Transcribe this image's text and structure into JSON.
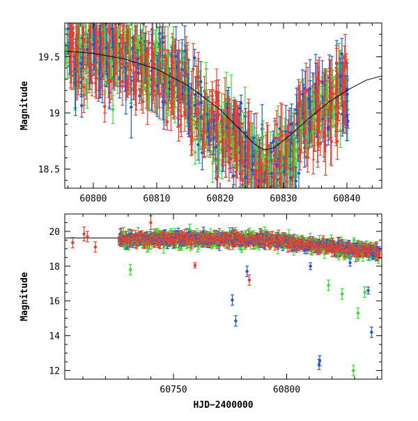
{
  "chart_data": [
    {
      "type": "scatter",
      "title": "",
      "xlabel": "",
      "ylabel": "Magnitude",
      "xlim": [
        60795.5,
        60845.5
      ],
      "ylim": [
        19.8,
        18.33
      ],
      "y_inverted": true,
      "grid": false,
      "legend": "none",
      "x_ticks": [
        60800,
        60810,
        60820,
        60830,
        60840
      ],
      "x_tick_labels": [
        "60800",
        "60810",
        "60820",
        "60830",
        "60840"
      ],
      "y_ticks": [
        18.5,
        19,
        19.5
      ],
      "y_tick_labels": [
        "18.5",
        "19",
        "19.5"
      ],
      "model_curve": {
        "name": "",
        "color": "#000000",
        "points": [
          [
            60795.5,
            19.55
          ],
          [
            60800,
            19.53
          ],
          [
            60805,
            19.48
          ],
          [
            60810,
            19.39
          ],
          [
            60815,
            19.24
          ],
          [
            60820,
            19.03
          ],
          [
            60823,
            18.86
          ],
          [
            60825.5,
            18.72
          ],
          [
            60827,
            18.67
          ],
          [
            60828.5,
            18.69
          ],
          [
            60831,
            18.8
          ],
          [
            60834,
            18.95
          ],
          [
            60837,
            19.09
          ],
          [
            60840,
            19.2
          ],
          [
            60843,
            19.29
          ],
          [
            60845.5,
            19.33
          ]
        ]
      },
      "series_colors": {
        "blue": "#1f55e0",
        "green": "#30e030",
        "red": "#f03a2a"
      }
    },
    {
      "type": "scatter",
      "title": "",
      "xlabel": "HJD−2400000",
      "ylabel": "Magnitude",
      "xlim": [
        60702,
        60842
      ],
      "ylim": [
        21.0,
        11.5
      ],
      "y_inverted": true,
      "grid": false,
      "legend": "none",
      "x_ticks": [
        60750,
        60800
      ],
      "x_tick_labels": [
        "60750",
        "60800"
      ],
      "y_ticks": [
        12,
        14,
        16,
        18,
        20
      ],
      "y_tick_labels": [
        "12",
        "14",
        "16",
        "18",
        "20"
      ],
      "baseline": {
        "name": "",
        "color": "#000000",
        "y": 19.62,
        "x_from": 60702,
        "x_to": 60726
      },
      "outliers": [
        {
          "series": "blue",
          "x": 60814.3,
          "y": 12.35,
          "err": 0.3
        },
        {
          "series": "blue",
          "x": 60814.6,
          "y": 12.55,
          "err": 0.3
        },
        {
          "series": "green",
          "x": 60829.5,
          "y": 12.0,
          "err": 0.3
        },
        {
          "series": "blue",
          "x": 60837.5,
          "y": 14.2,
          "err": 0.3
        },
        {
          "series": "blue",
          "x": 60777.5,
          "y": 14.85,
          "err": 0.3
        },
        {
          "series": "blue",
          "x": 60776.0,
          "y": 16.05,
          "err": 0.3
        },
        {
          "series": "green",
          "x": 60831.5,
          "y": 15.3,
          "err": 0.3
        },
        {
          "series": "blue",
          "x": 60836.0,
          "y": 16.6,
          "err": 0.2
        },
        {
          "series": "green",
          "x": 60834.5,
          "y": 16.5,
          "err": 0.3
        },
        {
          "series": "green",
          "x": 60824.5,
          "y": 16.4,
          "err": 0.3
        },
        {
          "series": "green",
          "x": 60818.5,
          "y": 16.9,
          "err": 0.3
        },
        {
          "series": "red",
          "x": 60783.5,
          "y": 17.2,
          "err": 0.3
        },
        {
          "series": "blue",
          "x": 60782.5,
          "y": 17.7,
          "err": 0.3
        },
        {
          "series": "red",
          "x": 60759.5,
          "y": 18.05,
          "err": 0.15
        },
        {
          "series": "green",
          "x": 60731.0,
          "y": 17.8,
          "err": 0.3
        },
        {
          "series": "red",
          "x": 60705.5,
          "y": 19.35,
          "err": 0.3
        },
        {
          "series": "red",
          "x": 60710.5,
          "y": 19.85,
          "err": 0.4
        },
        {
          "series": "red",
          "x": 60712.0,
          "y": 19.7,
          "err": 0.3
        },
        {
          "series": "red",
          "x": 60715.5,
          "y": 19.1,
          "err": 0.3
        },
        {
          "series": "red",
          "x": 60740.0,
          "y": 20.5,
          "err": 0.4
        },
        {
          "series": "blue",
          "x": 60810.5,
          "y": 18.0,
          "err": 0.2
        },
        {
          "series": "blue",
          "x": 60828.0,
          "y": 18.2,
          "err": 0.2
        },
        {
          "series": "blue",
          "x": 60838.0,
          "y": 18.6,
          "err": 0.2
        }
      ],
      "series_colors": {
        "blue": "#1f55e0",
        "green": "#30e030",
        "red": "#f03a2a"
      }
    }
  ]
}
